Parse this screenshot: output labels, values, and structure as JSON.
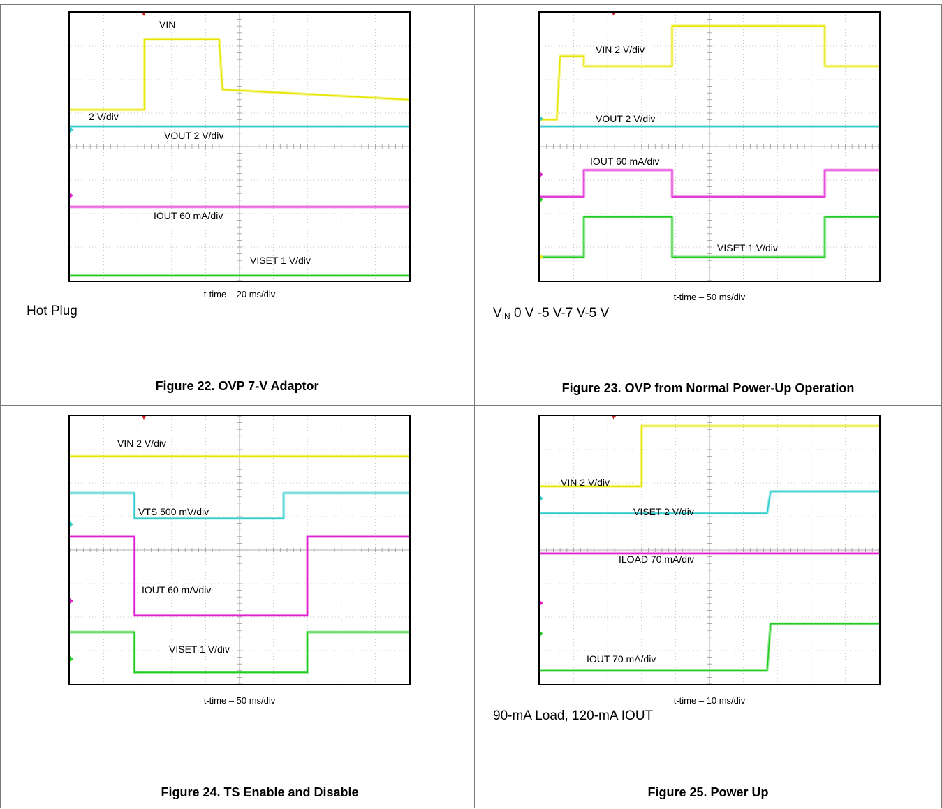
{
  "figures": [
    {
      "caption": "Figure 22. OVP 7-V Adaptor",
      "note": "Hot Plug",
      "time_label": "t-time – 20 ms/div",
      "channel_labels": [
        "VIN",
        "2 V/div",
        "VOUT  2 V/div",
        "IOUT 60 mA/div",
        "VISET 1 V/div"
      ]
    },
    {
      "caption": "Figure 23. OVP from Normal Power-Up Operation",
      "note_main": "V",
      "note_sub": "IN",
      "note_rest": " 0 V -5 V-7 V-5 V",
      "time_label": "t-time – 50 ms/div",
      "channel_labels": [
        "VIN  2 V/div",
        "VOUT  2 V/div",
        "IOUT 60 mA/div",
        "VISET 1 V/div"
      ]
    },
    {
      "caption": "Figure 24. TS Enable and Disable",
      "time_label": "t-time – 50 ms/div",
      "channel_labels": [
        "VIN 2 V/div",
        "VTS  500 mV/div",
        "IOUT 60 mA/div",
        "VISET 1 V/div"
      ]
    },
    {
      "caption": "Figure 25. Power Up",
      "note": "90-mA Load, 120-mA IOUT",
      "time_label": "t-time – 10 ms/div",
      "channel_labels": [
        "VIN 2 V/div",
        "VISET 2 V/div",
        "ILOAD 70 mA/div",
        "IOUT 70 mA/div"
      ]
    }
  ],
  "colors": {
    "ch1": "#e6e600",
    "ch2": "#33cccc",
    "ch3": "#e020d0",
    "ch4": "#22cc22",
    "grid": "#b8b8b8"
  },
  "chart_data": [
    {
      "type": "line",
      "grid": true,
      "x_divisions": 10,
      "y_divisions": 8,
      "series": [
        {
          "name": "VIN",
          "x": [
            0,
            2.2,
            2.2,
            4.4,
            4.5,
            6.4,
            10
          ],
          "y": [
            5.1,
            5.1,
            7.2,
            7.2,
            5.7,
            5.6,
            5.4
          ]
        },
        {
          "name": "VOUT",
          "x": [
            0,
            10
          ],
          "y": [
            4.6,
            4.6
          ]
        },
        {
          "name": "IOUT",
          "x": [
            0,
            10
          ],
          "y": [
            2.2,
            2.2
          ]
        },
        {
          "name": "VISET",
          "x": [
            0,
            10
          ],
          "y": [
            0.15,
            0.15
          ]
        }
      ]
    },
    {
      "type": "line",
      "grid": true,
      "x_divisions": 10,
      "y_divisions": 8,
      "series": [
        {
          "name": "VIN",
          "x": [
            0,
            0.5,
            0.6,
            1.3,
            1.3,
            3.9,
            3.9,
            8.4,
            8.4,
            10
          ],
          "y": [
            4.8,
            4.8,
            6.7,
            6.7,
            6.4,
            6.4,
            7.6,
            7.6,
            6.4,
            6.4
          ]
        },
        {
          "name": "VOUT",
          "x": [
            0,
            10
          ],
          "y": [
            4.6,
            4.6
          ]
        },
        {
          "name": "IOUT",
          "x": [
            0,
            1.3,
            1.3,
            3.9,
            3.9,
            8.4,
            8.4,
            10
          ],
          "y": [
            2.5,
            2.5,
            3.3,
            3.3,
            2.5,
            2.5,
            3.3,
            3.3
          ]
        },
        {
          "name": "VISET",
          "x": [
            0,
            1.3,
            1.3,
            3.9,
            3.9,
            8.4,
            8.4,
            10
          ],
          "y": [
            0.7,
            0.7,
            1.9,
            1.9,
            0.7,
            0.7,
            1.9,
            1.9
          ]
        }
      ]
    },
    {
      "type": "line",
      "grid": true,
      "x_divisions": 10,
      "y_divisions": 8,
      "series": [
        {
          "name": "VIN",
          "x": [
            0,
            10
          ],
          "y": [
            6.8,
            6.8
          ]
        },
        {
          "name": "VTS",
          "x": [
            0,
            1.9,
            1.9,
            6.3,
            6.3,
            10
          ],
          "y": [
            5.7,
            5.7,
            4.95,
            4.95,
            5.7,
            5.7
          ]
        },
        {
          "name": "IOUT",
          "x": [
            0,
            1.9,
            1.9,
            7.0,
            7.0,
            10
          ],
          "y": [
            4.4,
            4.4,
            2.05,
            2.05,
            4.4,
            4.4
          ]
        },
        {
          "name": "VISET",
          "x": [
            0,
            1.9,
            1.9,
            7.0,
            7.0,
            10
          ],
          "y": [
            1.55,
            1.55,
            0.35,
            0.35,
            1.55,
            1.55
          ]
        }
      ]
    },
    {
      "type": "line",
      "grid": true,
      "x_divisions": 10,
      "y_divisions": 8,
      "series": [
        {
          "name": "VIN",
          "x": [
            0,
            3.0,
            3.0,
            10
          ],
          "y": [
            5.9,
            5.9,
            7.7,
            7.7
          ]
        },
        {
          "name": "VISET",
          "x": [
            0,
            6.7,
            6.8,
            10
          ],
          "y": [
            5.1,
            5.1,
            5.75,
            5.75
          ]
        },
        {
          "name": "ILOAD",
          "x": [
            0,
            10
          ],
          "y": [
            3.9,
            3.9
          ]
        },
        {
          "name": "IOUT",
          "x": [
            0,
            6.7,
            6.8,
            10
          ],
          "y": [
            0.4,
            0.4,
            1.8,
            1.8
          ]
        }
      ]
    }
  ]
}
